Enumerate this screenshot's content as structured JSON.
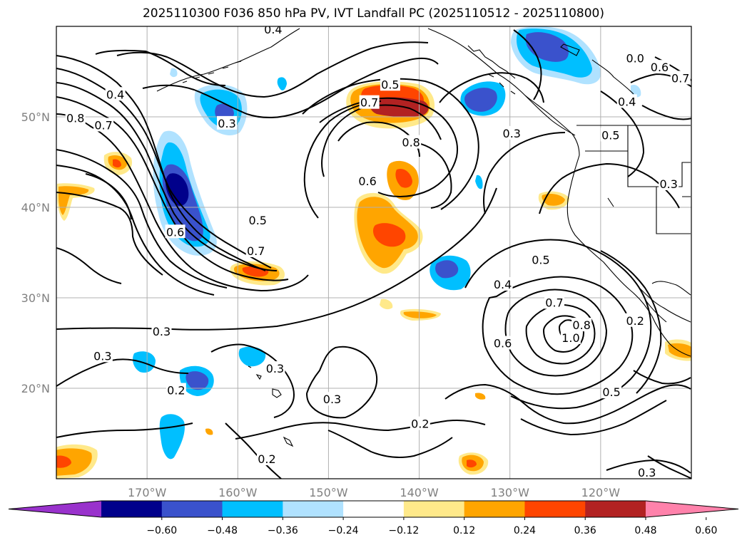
{
  "title": "2025110300 F036 850 hPa PV, IVT Landfall PC (2025110512 - 2025110800)",
  "map": {
    "lon_range": [
      -180,
      -110
    ],
    "lat_range": [
      10,
      60
    ],
    "lat_ticks": [
      {
        "value": 20,
        "label": "20°N"
      },
      {
        "value": 30,
        "label": "30°N"
      },
      {
        "value": 40,
        "label": "40°N"
      },
      {
        "value": 50,
        "label": "50°N"
      }
    ],
    "lon_ticks": [
      {
        "value": -170,
        "label": "170°W"
      },
      {
        "value": -160,
        "label": "160°W"
      },
      {
        "value": -150,
        "label": "150°W"
      },
      {
        "value": -140,
        "label": "140°W"
      },
      {
        "value": -130,
        "label": "130°W"
      },
      {
        "value": -120,
        "label": "120°W"
      }
    ],
    "grid": true,
    "contour_labels": [
      {
        "text": "0.4",
        "lon": -173.5,
        "lat": 52.5
      },
      {
        "text": "0.8",
        "lon": -177.9,
        "lat": 49.9
      },
      {
        "text": "0.7",
        "lon": -174.8,
        "lat": 49.1
      },
      {
        "text": "0.3",
        "lon": -161.2,
        "lat": 49.3
      },
      {
        "text": "0.4",
        "lon": -156.1,
        "lat": 59.7
      },
      {
        "text": "0.5",
        "lon": -157.8,
        "lat": 38.6
      },
      {
        "text": "0.6",
        "lon": -166.9,
        "lat": 37.3
      },
      {
        "text": "0.7",
        "lon": -158.0,
        "lat": 35.2
      },
      {
        "text": "0.5",
        "lon": -143.2,
        "lat": 53.6
      },
      {
        "text": "0.7",
        "lon": -145.5,
        "lat": 51.6
      },
      {
        "text": "0.8",
        "lon": -140.9,
        "lat": 47.2
      },
      {
        "text": "0.6",
        "lon": -145.7,
        "lat": 42.9
      },
      {
        "text": "0.3",
        "lon": -129.8,
        "lat": 48.2
      },
      {
        "text": "0.4",
        "lon": -117.1,
        "lat": 51.7
      },
      {
        "text": "0.5",
        "lon": -118.9,
        "lat": 48.0
      },
      {
        "text": "0.6",
        "lon": -113.5,
        "lat": 55.5
      },
      {
        "text": "0.7",
        "lon": -111.2,
        "lat": 54.3
      },
      {
        "text": "0.0",
        "lon": -116.2,
        "lat": 56.5
      },
      {
        "text": "0.3",
        "lon": -112.5,
        "lat": 42.6
      },
      {
        "text": "0.5",
        "lon": -126.6,
        "lat": 34.2
      },
      {
        "text": "0.4",
        "lon": -130.8,
        "lat": 31.5
      },
      {
        "text": "0.7",
        "lon": -125.1,
        "lat": 29.5
      },
      {
        "text": "1.0",
        "lon": -123.3,
        "lat": 25.6
      },
      {
        "text": "0.8",
        "lon": -122.1,
        "lat": 27.0
      },
      {
        "text": "0.6",
        "lon": -130.8,
        "lat": 25.0
      },
      {
        "text": "0.2",
        "lon": -116.2,
        "lat": 27.5
      },
      {
        "text": "0.5",
        "lon": -118.8,
        "lat": 19.6
      },
      {
        "text": "0.3",
        "lon": -168.4,
        "lat": 26.3
      },
      {
        "text": "0.3",
        "lon": -174.9,
        "lat": 23.6
      },
      {
        "text": "0.3",
        "lon": -155.9,
        "lat": 22.2
      },
      {
        "text": "0.2",
        "lon": -166.8,
        "lat": 19.8
      },
      {
        "text": "0.3",
        "lon": -149.6,
        "lat": 18.8
      },
      {
        "text": "0.2",
        "lon": -139.9,
        "lat": 16.1
      },
      {
        "text": "0.2",
        "lon": -156.8,
        "lat": 12.2
      },
      {
        "text": "0.3",
        "lon": -114.9,
        "lat": 10.7
      }
    ]
  },
  "colorbar": {
    "levels": [
      -0.6,
      -0.48,
      -0.36,
      -0.24,
      -0.12,
      0.12,
      0.24,
      0.36,
      0.48,
      0.6
    ],
    "tick_labels": [
      "−0.60",
      "−0.48",
      "−0.36",
      "−0.24",
      "−0.12",
      "0.12",
      "0.24",
      "0.36",
      "0.48",
      "0.60"
    ],
    "colors": [
      "#9932cc",
      "#00008b",
      "#3a52cc",
      "#00bfff",
      "#b0e2ff",
      "#ffffff",
      "#ffe98a",
      "#ffa500",
      "#ff4500",
      "#b22222",
      "#ff82ab"
    ]
  },
  "colors": {
    "grid": "#b0b0b0",
    "contour": "#000000",
    "coast": "#000000"
  }
}
